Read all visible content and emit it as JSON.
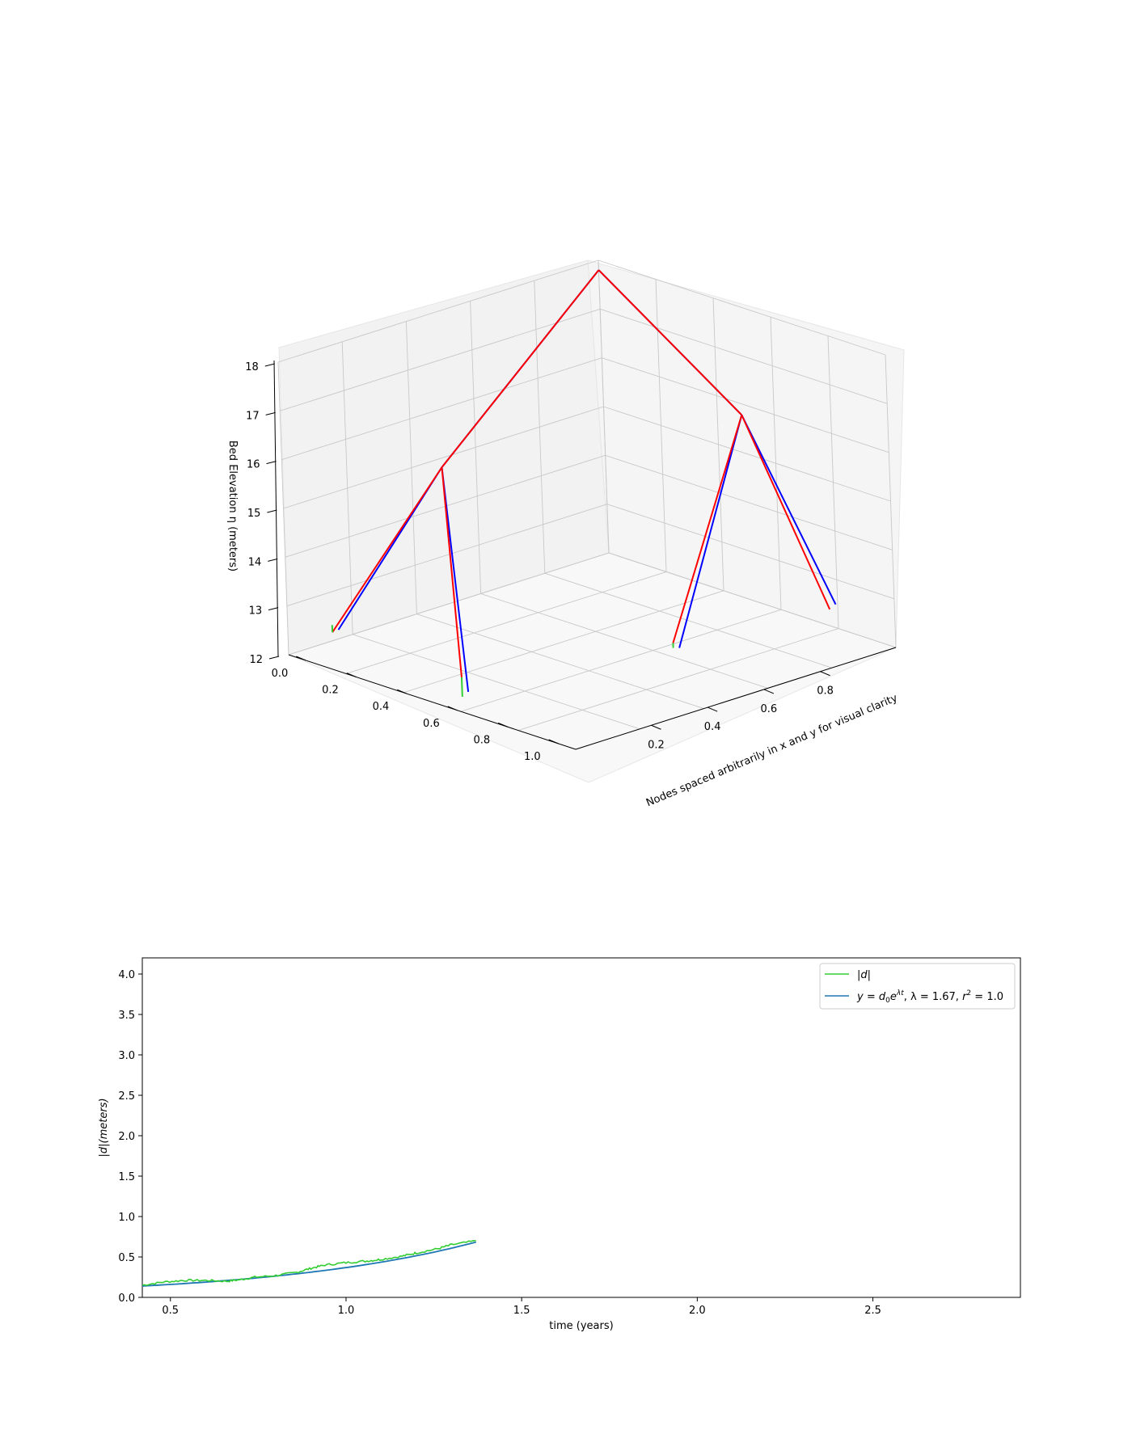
{
  "chart_data": [
    {
      "type": "line3d",
      "zlabel": "Bed Elevation η (meters)",
      "axis_label": "Nodes spaced arbitrarily in x and y for visual clarity",
      "z_ticks": [
        "12",
        "13",
        "14",
        "15",
        "16",
        "17",
        "18"
      ],
      "x_ticks": [
        "0.0",
        "0.2",
        "0.4",
        "0.6",
        "0.8",
        "1.0"
      ],
      "y_ticks": [
        "0.2",
        "0.4",
        "0.6",
        "0.8"
      ],
      "zlim": [
        12,
        18
      ],
      "grid": true,
      "series_colors": [
        "#0000ff",
        "#ff0000",
        "#32cd32"
      ],
      "network": {
        "root": [
          0.0,
          0.0,
          17.8
        ],
        "junctions": [
          [
            0.55,
            0.05,
            15.0
          ],
          [
            0.1,
            0.6,
            16.2
          ]
        ],
        "branches": [
          {
            "from": 0,
            "to": [
              0.95,
              0.55,
              12.1
            ],
            "blue": 12.2,
            "red": 12.5,
            "green": 12.1
          },
          {
            "from": 0,
            "to": [
              0.95,
              0.1,
              12.5
            ],
            "blue": 12.6,
            "red": 12.55,
            "green": 12.7
          },
          {
            "from": 1,
            "to": [
              0.6,
              0.9,
              13.0
            ],
            "blue": 13.05,
            "red": 13.15,
            "green": 13.05
          },
          {
            "from": 1,
            "to": [
              0.2,
              1.0,
              13.1
            ],
            "blue": 13.3,
            "red": 13.2,
            "green": 13.2
          }
        ]
      }
    },
    {
      "type": "line",
      "xlabel": "time (years)",
      "ylabel": "|d|(meters)",
      "xlim": [
        0.42,
        2.92
      ],
      "ylim": [
        0.0,
        4.2
      ],
      "x_ticks": [
        "0.5",
        "1.0",
        "1.5",
        "2.0",
        "2.5"
      ],
      "y_ticks": [
        "0.0",
        "0.5",
        "1.0",
        "1.5",
        "2.0",
        "2.5",
        "3.0",
        "3.5",
        "4.0"
      ],
      "legend_position": "upper right",
      "grid": false,
      "series": [
        {
          "name": "|d|",
          "color": "#32cd32",
          "x": [
            0.42,
            0.48,
            0.54,
            0.6,
            0.66,
            0.7,
            0.74,
            0.8,
            0.86,
            0.9,
            0.94,
            1.0,
            1.06,
            1.1,
            1.16,
            1.2,
            1.26,
            1.3,
            1.37
          ],
          "y": [
            0.15,
            0.19,
            0.21,
            0.21,
            0.2,
            0.22,
            0.25,
            0.27,
            0.31,
            0.36,
            0.4,
            0.43,
            0.45,
            0.47,
            0.51,
            0.55,
            0.6,
            0.65,
            0.7
          ]
        },
        {
          "name": "y = d₀e^(λt), λ = 1.67, r² = 1.0",
          "color": "#1f77b4",
          "d0": 0.0694,
          "lambda": 1.67,
          "x_range": [
            0.42,
            1.37
          ]
        }
      ],
      "legend": {
        "entry1_base": "|",
        "entry1_var": "d",
        "entry1_end": "|",
        "entry2_a": "y",
        "entry2_b": " = ",
        "entry2_c": "d",
        "entry2_d": "0",
        "entry2_e": "e",
        "entry2_f": "λt",
        "entry2_g": ", λ = 1.67, ",
        "entry2_h": "r",
        "entry2_i": "2",
        "entry2_j": " = 1.0"
      }
    }
  ]
}
